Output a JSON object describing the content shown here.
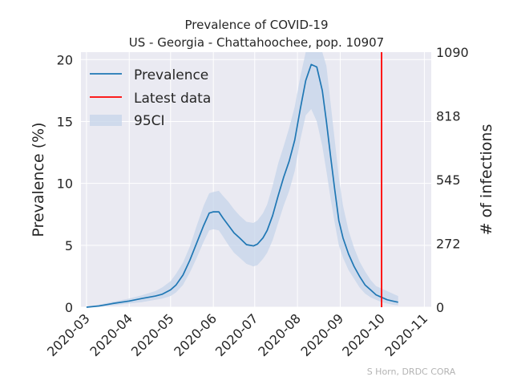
{
  "chart_data": {
    "type": "line",
    "title": "Prevalence of COVID-19",
    "subtitle": "US - Georgia - Chattahoochee, pop. 10907",
    "ylabel": "Prevalence (%)",
    "y2label": "# of infections",
    "ylim": [
      0,
      20.6
    ],
    "yticks": [
      0,
      5,
      10,
      15,
      20
    ],
    "y2ticks": [
      0,
      272,
      545,
      818,
      1090
    ],
    "xticks": [
      "2020-03",
      "2020-04",
      "2020-05",
      "2020-06",
      "2020-07",
      "2020-08",
      "2020-09",
      "2020-10",
      "2020-11"
    ],
    "xlim": [
      "2020-02-26",
      "2020-11-06"
    ],
    "grid": true,
    "legend": {
      "position": "top-left",
      "entries": [
        "Prevalence",
        "Latest data",
        "95CI"
      ]
    },
    "latest_data_date": "2020-10-01",
    "colors": {
      "prevalence": "#1f77b4",
      "latest": "#ff0000",
      "ci": "#c6d4ea",
      "background": "#eaeaf2",
      "grid": "#ffffff"
    },
    "series": [
      {
        "name": "Prevalence",
        "x": [
          "2020-03-01",
          "2020-03-10",
          "2020-03-20",
          "2020-04-01",
          "2020-04-10",
          "2020-04-20",
          "2020-04-25",
          "2020-05-01",
          "2020-05-05",
          "2020-05-10",
          "2020-05-15",
          "2020-05-20",
          "2020-05-25",
          "2020-05-29",
          "2020-06-01",
          "2020-06-05",
          "2020-06-08",
          "2020-06-12",
          "2020-06-16",
          "2020-06-20",
          "2020-06-25",
          "2020-06-30",
          "2020-07-03",
          "2020-07-07",
          "2020-07-10",
          "2020-07-14",
          "2020-07-18",
          "2020-07-22",
          "2020-07-26",
          "2020-07-30",
          "2020-08-03",
          "2020-08-07",
          "2020-08-11",
          "2020-08-15",
          "2020-08-19",
          "2020-08-22",
          "2020-08-25",
          "2020-08-28",
          "2020-08-31",
          "2020-09-03",
          "2020-09-07",
          "2020-09-11",
          "2020-09-15",
          "2020-09-19",
          "2020-09-23",
          "2020-09-27",
          "2020-10-01",
          "2020-10-05",
          "2020-10-09",
          "2020-10-13"
        ],
        "y": [
          0.0,
          0.1,
          0.3,
          0.5,
          0.7,
          0.9,
          1.05,
          1.4,
          1.8,
          2.6,
          3.8,
          5.2,
          6.6,
          7.6,
          7.7,
          7.7,
          7.2,
          6.6,
          6.0,
          5.6,
          5.05,
          4.95,
          5.1,
          5.6,
          6.2,
          7.4,
          9.0,
          10.5,
          11.8,
          13.5,
          16.0,
          18.3,
          19.6,
          19.4,
          17.5,
          15.0,
          12.2,
          9.5,
          7.0,
          5.6,
          4.3,
          3.3,
          2.5,
          1.8,
          1.4,
          1.0,
          0.8,
          0.6,
          0.5,
          0.4
        ]
      },
      {
        "name": "95CI",
        "x": [
          "2020-03-01",
          "2020-03-10",
          "2020-03-20",
          "2020-04-01",
          "2020-04-10",
          "2020-04-20",
          "2020-04-25",
          "2020-05-01",
          "2020-05-05",
          "2020-05-10",
          "2020-05-15",
          "2020-05-20",
          "2020-05-25",
          "2020-05-29",
          "2020-06-01",
          "2020-06-05",
          "2020-06-08",
          "2020-06-12",
          "2020-06-16",
          "2020-06-20",
          "2020-06-25",
          "2020-06-30",
          "2020-07-03",
          "2020-07-07",
          "2020-07-10",
          "2020-07-14",
          "2020-07-18",
          "2020-07-22",
          "2020-07-26",
          "2020-07-30",
          "2020-08-03",
          "2020-08-07",
          "2020-08-11",
          "2020-08-15",
          "2020-08-19",
          "2020-08-22",
          "2020-08-25",
          "2020-08-28",
          "2020-08-31",
          "2020-09-03",
          "2020-09-07",
          "2020-09-11",
          "2020-09-15",
          "2020-09-19",
          "2020-09-23",
          "2020-09-27",
          "2020-10-01",
          "2020-10-05",
          "2020-10-09",
          "2020-10-13"
        ],
        "lower": [
          0.0,
          0.05,
          0.15,
          0.3,
          0.4,
          0.6,
          0.7,
          0.9,
          1.2,
          1.8,
          2.8,
          4.0,
          5.3,
          6.2,
          6.3,
          6.2,
          5.7,
          5.0,
          4.4,
          4.0,
          3.5,
          3.3,
          3.4,
          3.9,
          4.4,
          5.4,
          6.8,
          8.2,
          9.4,
          11.0,
          13.5,
          15.5,
          16.0,
          15.0,
          13.0,
          11.0,
          8.8,
          6.8,
          5.0,
          4.0,
          3.0,
          2.3,
          1.6,
          1.1,
          0.8,
          0.6,
          0.4,
          0.3,
          0.2,
          0.15
        ],
        "upper": [
          0.05,
          0.2,
          0.45,
          0.7,
          0.95,
          1.3,
          1.6,
          2.1,
          2.7,
          3.6,
          4.9,
          6.6,
          8.2,
          9.2,
          9.3,
          9.4,
          9.0,
          8.5,
          7.9,
          7.4,
          6.9,
          6.8,
          7.0,
          7.6,
          8.3,
          9.8,
          11.6,
          13.0,
          14.5,
          16.2,
          18.6,
          21.0,
          22.5,
          22.5,
          21.5,
          19.5,
          16.5,
          13.5,
          10.5,
          8.2,
          6.2,
          4.8,
          3.7,
          2.9,
          2.2,
          1.7,
          1.5,
          1.3,
          1.1,
          0.9
        ]
      }
    ]
  },
  "credit": "S Horn, DRDC CORA"
}
